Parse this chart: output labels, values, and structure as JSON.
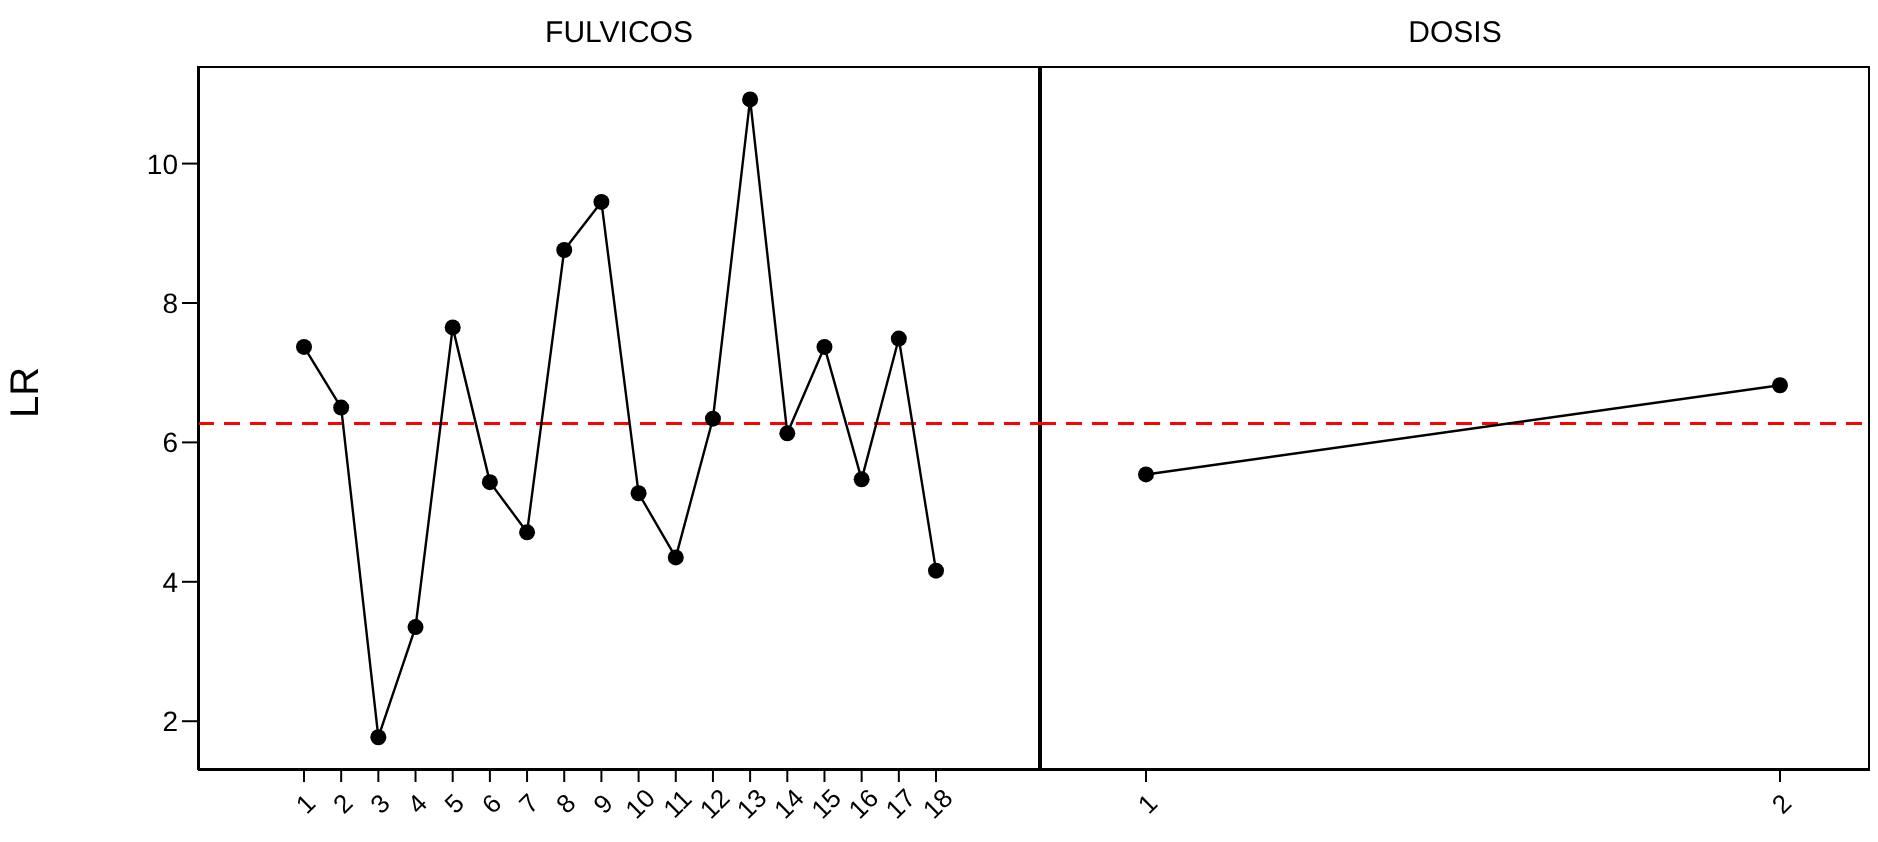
{
  "chart_data": [
    {
      "type": "line",
      "title": "FULVICOS",
      "ylabel": "LR",
      "categories": [
        "1",
        "2",
        "3",
        "4",
        "5",
        "6",
        "7",
        "8",
        "9",
        "10",
        "11",
        "12",
        "13",
        "14",
        "15",
        "16",
        "17",
        "18"
      ],
      "series": [
        {
          "color": "#000000",
          "values": [
            7.37,
            6.5,
            1.77,
            3.35,
            7.65,
            5.43,
            4.71,
            8.76,
            9.45,
            5.27,
            4.35,
            6.34,
            10.92,
            6.13,
            7.37,
            5.47,
            7.49,
            4.16
          ]
        }
      ],
      "ylim": [
        1.3,
        11.4
      ],
      "yticks": [
        2,
        4,
        6,
        8,
        10
      ],
      "marker": "circle",
      "line_style": "solid",
      "grid": false,
      "legend": false,
      "ref_lines": [
        {
          "axis": "y",
          "value": 6.27,
          "color": "#ff0000",
          "line_style": "dashed"
        }
      ]
    },
    {
      "type": "line",
      "title": "DOSIS",
      "categories": [
        "1",
        "2"
      ],
      "series": [
        {
          "color": "#000000",
          "values": [
            5.54,
            6.82
          ]
        }
      ],
      "ylim": [
        1.3,
        11.4
      ],
      "yticks": [
        2,
        4,
        6,
        8,
        10
      ],
      "marker": "circle",
      "line_style": "solid",
      "grid": false,
      "legend": false,
      "tick_labels": "x",
      "ref_lines": [
        {
          "axis": "y",
          "value": 6.27,
          "color": "#ff0000",
          "line_style": "dashed"
        }
      ]
    }
  ]
}
